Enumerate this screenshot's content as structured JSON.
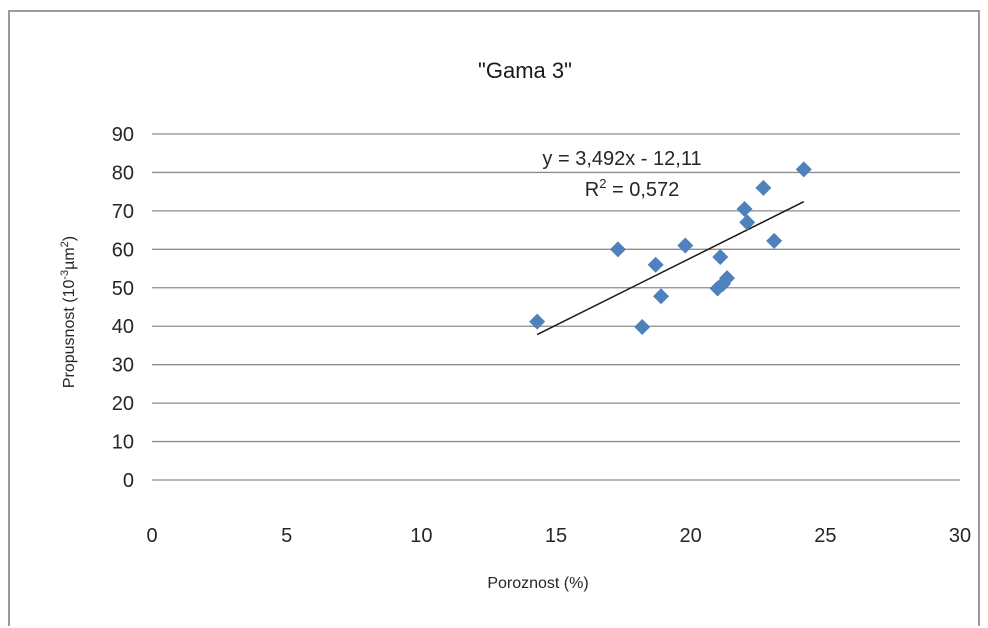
{
  "chart_data": {
    "type": "scatter",
    "title": "\"Gama 3\"",
    "xlabel": "Poroznost (%)",
    "ylabel_parts": {
      "main": "Propusnost (10",
      "exp1": "-3",
      "mid": "µm",
      "exp2": "2",
      "end": ")"
    },
    "xlim": [
      0,
      30
    ],
    "ylim": [
      0,
      90
    ],
    "xticks": [
      0,
      5,
      10,
      15,
      20,
      25,
      30
    ],
    "yticks": [
      0,
      10,
      20,
      30,
      40,
      50,
      60,
      70,
      80,
      90
    ],
    "grid": "horizontal",
    "marker_color": "#4f81bd",
    "trendline_color": "#1a1a1a",
    "series": [
      {
        "points": [
          [
            14.3,
            41.2
          ],
          [
            17.3,
            60.0
          ],
          [
            18.2,
            39.8
          ],
          [
            18.7,
            56.0
          ],
          [
            18.9,
            47.8
          ],
          [
            19.8,
            61.0
          ],
          [
            21.0,
            49.8
          ],
          [
            21.1,
            58.0
          ],
          [
            21.2,
            51.0
          ],
          [
            21.35,
            52.5
          ],
          [
            22.0,
            70.5
          ],
          [
            22.1,
            67.0
          ],
          [
            22.7,
            76.0
          ],
          [
            23.1,
            62.2
          ],
          [
            24.2,
            80.8
          ]
        ]
      }
    ],
    "trendline": {
      "slope": 3.492,
      "intercept": -12.11,
      "x_range": [
        14.3,
        24.2
      ],
      "equation": "y = 3,492x - 12,11",
      "r2_prefix": "R",
      "r2_sup": "2",
      "r2_value": " = 0,572"
    }
  }
}
